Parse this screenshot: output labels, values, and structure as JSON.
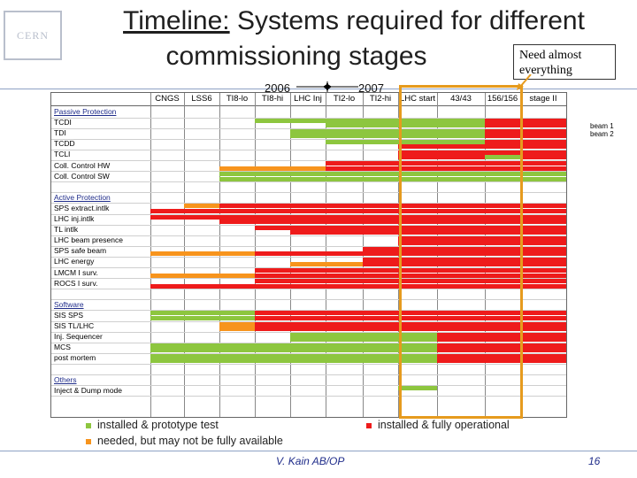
{
  "logo_text": "CERN",
  "title": {
    "underlined": "Timeline:",
    "rest_line1": " Systems required for different",
    "line2": "commissioning stages"
  },
  "callout": "Need almost everything",
  "years": {
    "left": "2006",
    "right": "2007"
  },
  "columns": [
    "CNGS",
    "LSS6",
    "TI8-lo",
    "TI8-hi",
    "LHC Inj",
    "TI2-lo",
    "TI2-hi",
    "LHC start",
    "43/43",
    "156/156",
    "stage II"
  ],
  "beams": [
    "beam 1",
    "beam 2"
  ],
  "colors": {
    "green": "#8dc63f",
    "red": "#ee1b1b",
    "orange": "#f7941d"
  },
  "rows": [
    {
      "label": "Passive Protection",
      "section": true
    },
    {
      "label": "TCDI",
      "b1": [
        [
          3,
          5,
          "g"
        ],
        [
          5,
          9,
          "g"
        ],
        [
          9,
          11,
          "r"
        ]
      ],
      "b2": [
        [
          5,
          9,
          "g"
        ],
        [
          9,
          11,
          "r"
        ]
      ]
    },
    {
      "label": "TDI",
      "b1": [
        [
          4,
          5,
          "g"
        ],
        [
          5,
          9,
          "g"
        ],
        [
          9,
          11,
          "r"
        ]
      ],
      "b2": [
        [
          4,
          9,
          "g"
        ],
        [
          9,
          11,
          "r"
        ]
      ]
    },
    {
      "label": "TCDD",
      "b1": [
        [
          5,
          9,
          "g"
        ],
        [
          9,
          11,
          "r"
        ]
      ],
      "b2": [
        [
          7,
          9,
          "r"
        ],
        [
          9,
          11,
          "r"
        ]
      ]
    },
    {
      "label": "TCLI",
      "b1": [
        [
          7,
          9,
          "r"
        ],
        [
          9,
          11,
          "r"
        ]
      ],
      "b2": [
        [
          7,
          9,
          "r"
        ],
        [
          9,
          10,
          "g"
        ],
        [
          10,
          11,
          "r"
        ]
      ]
    },
    {
      "label": "Coll. Control HW",
      "b1": [
        [
          5,
          7,
          "r"
        ],
        [
          7,
          9,
          "r"
        ],
        [
          9,
          11,
          "r"
        ]
      ],
      "b2": [
        [
          2,
          5,
          "o"
        ],
        [
          5,
          11,
          "r"
        ]
      ]
    },
    {
      "label": "Coll. Control SW",
      "b1": [
        [
          2,
          5,
          "g"
        ],
        [
          5,
          11,
          "g"
        ]
      ],
      "b2": [
        [
          2,
          5,
          "g"
        ],
        [
          5,
          11,
          "g"
        ]
      ]
    },
    {
      "label": "",
      "spacer": true
    },
    {
      "label": "Active Protection",
      "section": true
    },
    {
      "label": "SPS extract.intlk",
      "b1": [
        [
          1,
          2,
          "o"
        ],
        [
          2,
          11,
          "r"
        ]
      ],
      "b2": [
        [
          0,
          11,
          "r"
        ]
      ]
    },
    {
      "label": "LHC inj.intlk",
      "b1": [
        [
          0,
          11,
          "r"
        ]
      ],
      "b2": [
        [
          2,
          11,
          "r"
        ]
      ]
    },
    {
      "label": "TL intlk",
      "b1": [
        [
          3,
          11,
          "r"
        ]
      ],
      "b2": [
        [
          4,
          11,
          "r"
        ]
      ]
    },
    {
      "label": "LHC beam presence",
      "b1": [
        [
          7,
          11,
          "r"
        ]
      ],
      "b2": [
        [
          7,
          11,
          "r"
        ]
      ]
    },
    {
      "label": "SPS safe beam",
      "b1": [
        [
          6,
          11,
          "r"
        ]
      ],
      "b2": [
        [
          0,
          3,
          "o"
        ],
        [
          3,
          11,
          "r"
        ]
      ]
    },
    {
      "label": "LHC energy",
      "b1": [
        [
          6,
          11,
          "r"
        ]
      ],
      "b2": [
        [
          4,
          6,
          "o"
        ],
        [
          6,
          11,
          "r"
        ]
      ]
    },
    {
      "label": "LMCM I surv.",
      "b1": [
        [
          3,
          11,
          "r"
        ]
      ],
      "b2": [
        [
          0,
          3,
          "o"
        ],
        [
          3,
          11,
          "r"
        ]
      ]
    },
    {
      "label": "ROCS I surv.",
      "b1": [
        [
          3,
          11,
          "r"
        ]
      ],
      "b2": [
        [
          0,
          11,
          "r"
        ]
      ]
    },
    {
      "label": "",
      "spacer": true
    },
    {
      "label": "Software",
      "section": true
    },
    {
      "label": "SIS SPS",
      "b1": [
        [
          0,
          3,
          "g"
        ],
        [
          3,
          11,
          "r"
        ]
      ],
      "b2": [
        [
          0,
          3,
          "g"
        ],
        [
          3,
          11,
          "r"
        ]
      ]
    },
    {
      "label": "SIS TL/LHC",
      "b1": [
        [
          2,
          3,
          "o"
        ],
        [
          3,
          11,
          "r"
        ]
      ],
      "b2": [
        [
          2,
          3,
          "o"
        ],
        [
          3,
          11,
          "r"
        ]
      ]
    },
    {
      "label": "Inj. Sequencer",
      "b1": [
        [
          4,
          8,
          "g"
        ],
        [
          8,
          11,
          "r"
        ]
      ],
      "b2": [
        [
          4,
          8,
          "g"
        ],
        [
          8,
          11,
          "r"
        ]
      ]
    },
    {
      "label": "MCS",
      "b1": [
        [
          0,
          8,
          "g"
        ],
        [
          8,
          11,
          "r"
        ]
      ],
      "b2": [
        [
          0,
          8,
          "g"
        ],
        [
          8,
          11,
          "r"
        ]
      ]
    },
    {
      "label": "post mortem",
      "b1": [
        [
          0,
          8,
          "g"
        ],
        [
          8,
          11,
          "r"
        ]
      ],
      "b2": [
        [
          0,
          8,
          "g"
        ],
        [
          8,
          11,
          "r"
        ]
      ]
    },
    {
      "label": "",
      "spacer": true
    },
    {
      "label": "Others",
      "section": true
    },
    {
      "label": "Inject & Dump mode",
      "b1": [
        [
          7,
          8,
          "g"
        ]
      ],
      "b2": []
    }
  ],
  "legend": {
    "green": "installed & prototype test",
    "orange": "needed, but may not be fully available",
    "red": "installed & fully operational"
  },
  "footer": {
    "author": "V. Kain AB/OP",
    "page": "16"
  }
}
